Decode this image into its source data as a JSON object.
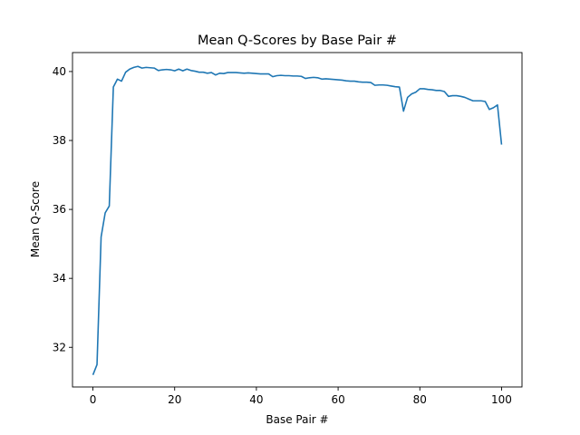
{
  "chart_data": {
    "type": "line",
    "title": "Mean Q-Scores by Base Pair #",
    "xlabel": "Base Pair #",
    "ylabel": "Mean Q-Score",
    "xlim": [
      -5,
      105
    ],
    "ylim": [
      30.85,
      40.55
    ],
    "xticks": [
      0,
      20,
      40,
      60,
      80,
      100
    ],
    "yticks": [
      32,
      34,
      36,
      38,
      40
    ],
    "grid": false,
    "line_color": "#1f77b4",
    "series": [
      {
        "x": [
          0,
          1,
          2,
          3,
          4,
          5,
          6,
          7,
          8,
          9,
          10,
          11,
          12,
          13,
          14,
          15,
          16,
          17,
          18,
          19,
          20,
          21,
          22,
          23,
          24,
          25,
          26,
          27,
          28,
          29,
          30,
          31,
          32,
          33,
          34,
          35,
          36,
          37,
          38,
          39,
          40,
          41,
          42,
          43,
          44,
          45,
          46,
          47,
          48,
          49,
          50,
          51,
          52,
          53,
          54,
          55,
          56,
          57,
          58,
          59,
          60,
          61,
          62,
          63,
          64,
          65,
          66,
          67,
          68,
          69,
          70,
          71,
          72,
          73,
          74,
          75,
          76,
          77,
          78,
          79,
          80,
          81,
          82,
          83,
          84,
          85,
          86,
          87,
          88,
          89,
          90,
          91,
          92,
          93,
          94,
          95,
          96,
          97,
          98,
          99,
          100
        ],
        "values": [
          31.2,
          31.5,
          35.2,
          35.9,
          36.1,
          39.55,
          39.78,
          39.72,
          39.98,
          40.07,
          40.12,
          40.15,
          40.1,
          40.12,
          40.11,
          40.1,
          40.03,
          40.05,
          40.06,
          40.05,
          40.02,
          40.07,
          40.02,
          40.07,
          40.03,
          40.01,
          39.98,
          39.98,
          39.95,
          39.97,
          39.9,
          39.95,
          39.94,
          39.97,
          39.97,
          39.97,
          39.96,
          39.95,
          39.96,
          39.95,
          39.94,
          39.93,
          39.93,
          39.93,
          39.85,
          39.88,
          39.89,
          39.88,
          39.88,
          39.87,
          39.87,
          39.86,
          39.8,
          39.82,
          39.83,
          39.82,
          39.78,
          39.79,
          39.78,
          39.77,
          39.76,
          39.75,
          39.73,
          39.72,
          39.72,
          39.7,
          39.69,
          39.69,
          39.68,
          39.6,
          39.61,
          39.61,
          39.6,
          39.58,
          39.56,
          39.55,
          38.85,
          39.25,
          39.35,
          39.4,
          39.5,
          39.5,
          39.48,
          39.47,
          39.45,
          39.45,
          39.42,
          39.28,
          39.3,
          39.3,
          39.28,
          39.25,
          39.2,
          39.15,
          39.15,
          39.15,
          39.13,
          38.9,
          38.95,
          39.03,
          37.88
        ]
      }
    ]
  }
}
